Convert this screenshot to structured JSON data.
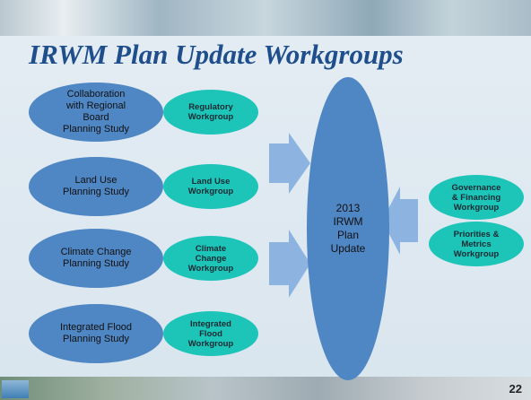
{
  "title": "IRWM Plan Update Workgroups",
  "studies": [
    {
      "label": "Collaboration\nwith Regional\nBoard\nPlanning Study",
      "workgroup": "Regulatory\nWorkgroup"
    },
    {
      "label": "Land Use\nPlanning Study",
      "workgroup": "Land Use\nWorkgroup"
    },
    {
      "label": "Climate Change\nPlanning Study",
      "workgroup": "Climate\nChange\nWorkgroup"
    },
    {
      "label": "Integrated Flood\nPlanning Study",
      "workgroup": "Integrated\nFlood\nWorkgroup"
    }
  ],
  "center": "2013\nIRWM\nPlan\nUpdate",
  "right_workgroups": [
    "Governance\n& Financing\nWorkgroup",
    "Priorities &\nMetrics\nWorkgroup"
  ],
  "page_number": "22"
}
